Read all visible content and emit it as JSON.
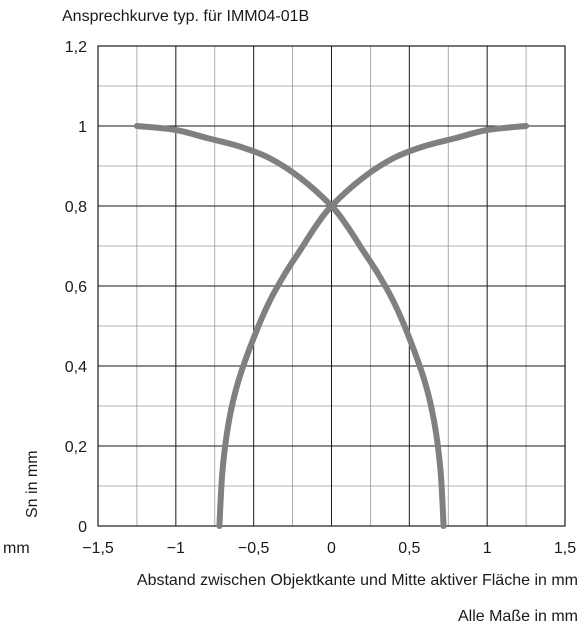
{
  "chart_data": {
    "type": "line",
    "title": "Ansprechkurve typ. für IMM04-01B",
    "xlabel": "Abstand zwischen Objektkante und Mitte aktiver Fläche in mm",
    "ylabel": "Sn in mm",
    "x_unit": "mm",
    "footnote": "Alle Maße in mm",
    "xlim": [
      -1.5,
      1.5
    ],
    "ylim": [
      0,
      1.2
    ],
    "x_major_ticks": [
      -1.5,
      -1,
      -0.5,
      0,
      0.5,
      1,
      1.5
    ],
    "x_tick_labels": [
      "−1,5",
      "−1",
      "−0,5",
      "0",
      "0,5",
      "1",
      "1,5"
    ],
    "y_major_ticks": [
      0,
      0.2,
      0.4,
      0.6,
      0.8,
      1,
      1.2
    ],
    "y_tick_labels": [
      "0",
      "0,2",
      "0,4",
      "0,6",
      "0,8",
      "1",
      "1,2"
    ],
    "grid": true,
    "line_color": "#808080",
    "series": [
      {
        "x": [
          -0.72,
          -0.7,
          -0.66,
          -0.6,
          -0.5,
          -0.4,
          -0.3,
          -0.2,
          -0.1,
          0.0,
          0.2,
          0.4,
          0.6,
          0.8,
          1.0,
          1.25
        ],
        "y": [
          0.0,
          0.14,
          0.26,
          0.36,
          0.47,
          0.56,
          0.63,
          0.69,
          0.75,
          0.8,
          0.87,
          0.92,
          0.95,
          0.97,
          0.99,
          1.0
        ]
      },
      {
        "x": [
          0.72,
          0.7,
          0.66,
          0.6,
          0.5,
          0.4,
          0.3,
          0.2,
          0.1,
          0.0,
          -0.2,
          -0.4,
          -0.6,
          -0.8,
          -1.0,
          -1.25
        ],
        "y": [
          0.0,
          0.14,
          0.26,
          0.36,
          0.47,
          0.56,
          0.63,
          0.69,
          0.75,
          0.8,
          0.87,
          0.92,
          0.95,
          0.97,
          0.99,
          1.0
        ]
      }
    ]
  }
}
